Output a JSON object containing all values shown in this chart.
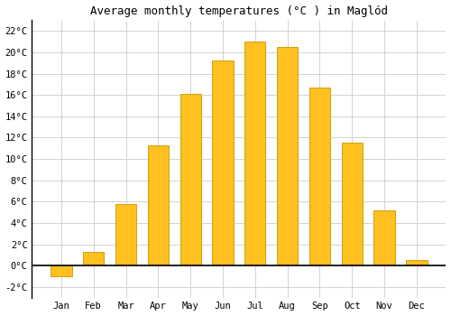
{
  "months": [
    "Jan",
    "Feb",
    "Mar",
    "Apr",
    "May",
    "Jun",
    "Jul",
    "Aug",
    "Sep",
    "Oct",
    "Nov",
    "Dec"
  ],
  "values": [
    -1.0,
    1.3,
    5.8,
    11.3,
    16.1,
    19.2,
    21.0,
    20.5,
    16.7,
    11.5,
    5.2,
    0.5
  ],
  "bar_color": "#FFC020",
  "bar_edge_color": "#D4A010",
  "title": "Average monthly temperatures (°C ) in Maglód",
  "ylim": [
    -3,
    23
  ],
  "yticks": [
    -2,
    0,
    2,
    4,
    6,
    8,
    10,
    12,
    14,
    16,
    18,
    20,
    22
  ],
  "grid_color": "#cccccc",
  "background_color": "#ffffff",
  "title_fontsize": 9,
  "tick_fontsize": 7.5,
  "font_family": "monospace"
}
